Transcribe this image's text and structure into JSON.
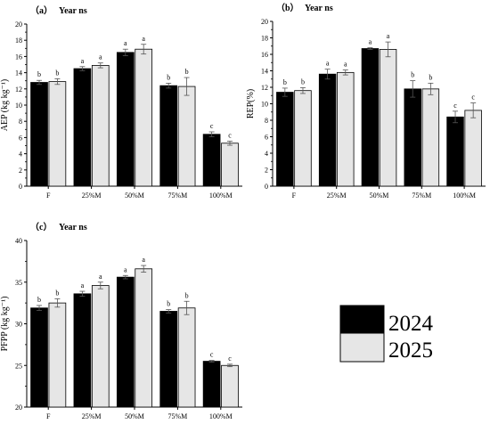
{
  "legend": {
    "items": [
      {
        "label": "2024",
        "color": "#000000"
      },
      {
        "label": "2025",
        "color": "#e6e6e6"
      }
    ]
  },
  "chart_data": [
    {
      "type": "bar",
      "panel_label": "（a）",
      "annotation": "Year ns",
      "ylabel": "AEP (kg kg⁻¹)",
      "xlabel": "",
      "categories": [
        "F",
        "25%M",
        "50%M",
        "75%M",
        "100%M"
      ],
      "ylim": [
        0,
        20
      ],
      "yticks": [
        0,
        2,
        4,
        6,
        8,
        10,
        12,
        14,
        16,
        18,
        20
      ],
      "series": [
        {
          "name": "2024",
          "values": [
            12.8,
            14.5,
            16.5,
            12.4,
            6.4
          ],
          "errors": [
            0.25,
            0.25,
            0.4,
            0.3,
            0.3
          ],
          "letters": [
            "b",
            "a",
            "a",
            "b",
            "c"
          ]
        },
        {
          "name": "2025",
          "values": [
            12.9,
            14.9,
            16.9,
            12.3,
            5.3
          ],
          "errors": [
            0.35,
            0.3,
            0.6,
            1.1,
            0.25
          ],
          "letters": [
            "b",
            "a",
            "a",
            "b",
            "c"
          ]
        }
      ]
    },
    {
      "type": "bar",
      "panel_label": "（b）",
      "annotation": "Year ns",
      "ylabel": "REP(%)",
      "xlabel": "",
      "categories": [
        "F",
        "25%M",
        "50%M",
        "75%M",
        "100%M"
      ],
      "ylim": [
        0,
        20
      ],
      "yticks": [
        0,
        2,
        4,
        6,
        8,
        10,
        12,
        14,
        16,
        18,
        20
      ],
      "series": [
        {
          "name": "2024",
          "values": [
            11.4,
            13.6,
            16.7,
            11.8,
            8.4
          ],
          "errors": [
            0.5,
            0.6,
            0.1,
            1.0,
            0.7
          ],
          "letters": [
            "b",
            "a",
            "a",
            "b",
            "c"
          ]
        },
        {
          "name": "2025",
          "values": [
            11.6,
            13.8,
            16.6,
            11.8,
            9.2
          ],
          "errors": [
            0.35,
            0.3,
            0.9,
            0.7,
            0.9
          ],
          "letters": [
            "b",
            "a",
            "a",
            "b",
            "c"
          ]
        }
      ]
    },
    {
      "type": "bar",
      "panel_label": "（c）",
      "annotation": "Year ns",
      "ylabel": "PFPP (kg kg⁻¹)",
      "xlabel": "",
      "categories": [
        "F",
        "25%M",
        "50%M",
        "75%M",
        "100%M"
      ],
      "ylim": [
        20,
        40
      ],
      "yticks": [
        20,
        25,
        30,
        35,
        40
      ],
      "series": [
        {
          "name": "2024",
          "values": [
            31.9,
            33.6,
            35.6,
            31.5,
            25.5
          ],
          "errors": [
            0.3,
            0.3,
            0.2,
            0.2,
            0.1
          ],
          "letters": [
            "b",
            "a",
            "a",
            "b",
            "c"
          ]
        },
        {
          "name": "2025",
          "values": [
            32.5,
            34.6,
            36.6,
            31.9,
            25.0
          ],
          "errors": [
            0.5,
            0.4,
            0.4,
            0.8,
            0.15
          ],
          "letters": [
            "b",
            "a",
            "a",
            "b",
            "c"
          ]
        }
      ]
    }
  ]
}
